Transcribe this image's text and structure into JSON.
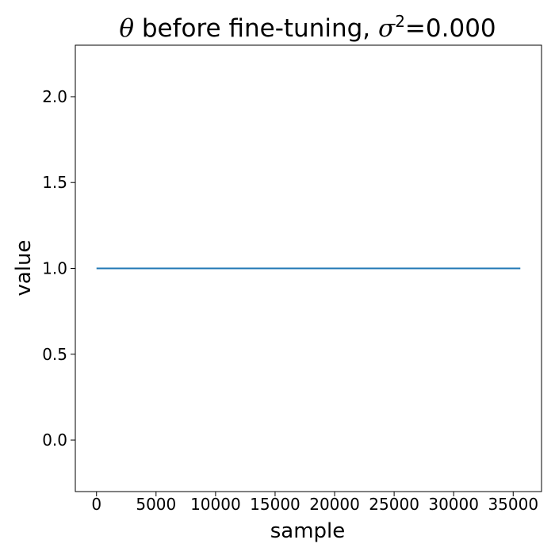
{
  "title": {
    "theta_symbol": "θ",
    "text": " before fine-tuning, ",
    "sigma_symbol": "σ",
    "sigma_exponent": "2",
    "sigma_value": "=0.000"
  },
  "chart_data": {
    "type": "line",
    "title": "θ before fine-tuning, σ²=0.000",
    "xlabel": "sample",
    "ylabel": "value",
    "xlim": [
      -1780,
      37380
    ],
    "ylim": [
      -0.3,
      2.3
    ],
    "x_ticks": [
      0,
      5000,
      10000,
      15000,
      20000,
      25000,
      30000,
      35000
    ],
    "x_tick_labels": [
      "0",
      "5000",
      "10000",
      "15000",
      "20000",
      "25000",
      "30000",
      "35000"
    ],
    "y_ticks": [
      0.0,
      0.5,
      1.0,
      1.5,
      2.0
    ],
    "y_tick_labels": [
      "0.0",
      "0.5",
      "1.0",
      "1.5",
      "2.0"
    ],
    "grid": false,
    "series": [
      {
        "color": "#1f77b4",
        "x": [
          0,
          35600
        ],
        "y": [
          1.0,
          1.0
        ]
      }
    ]
  }
}
